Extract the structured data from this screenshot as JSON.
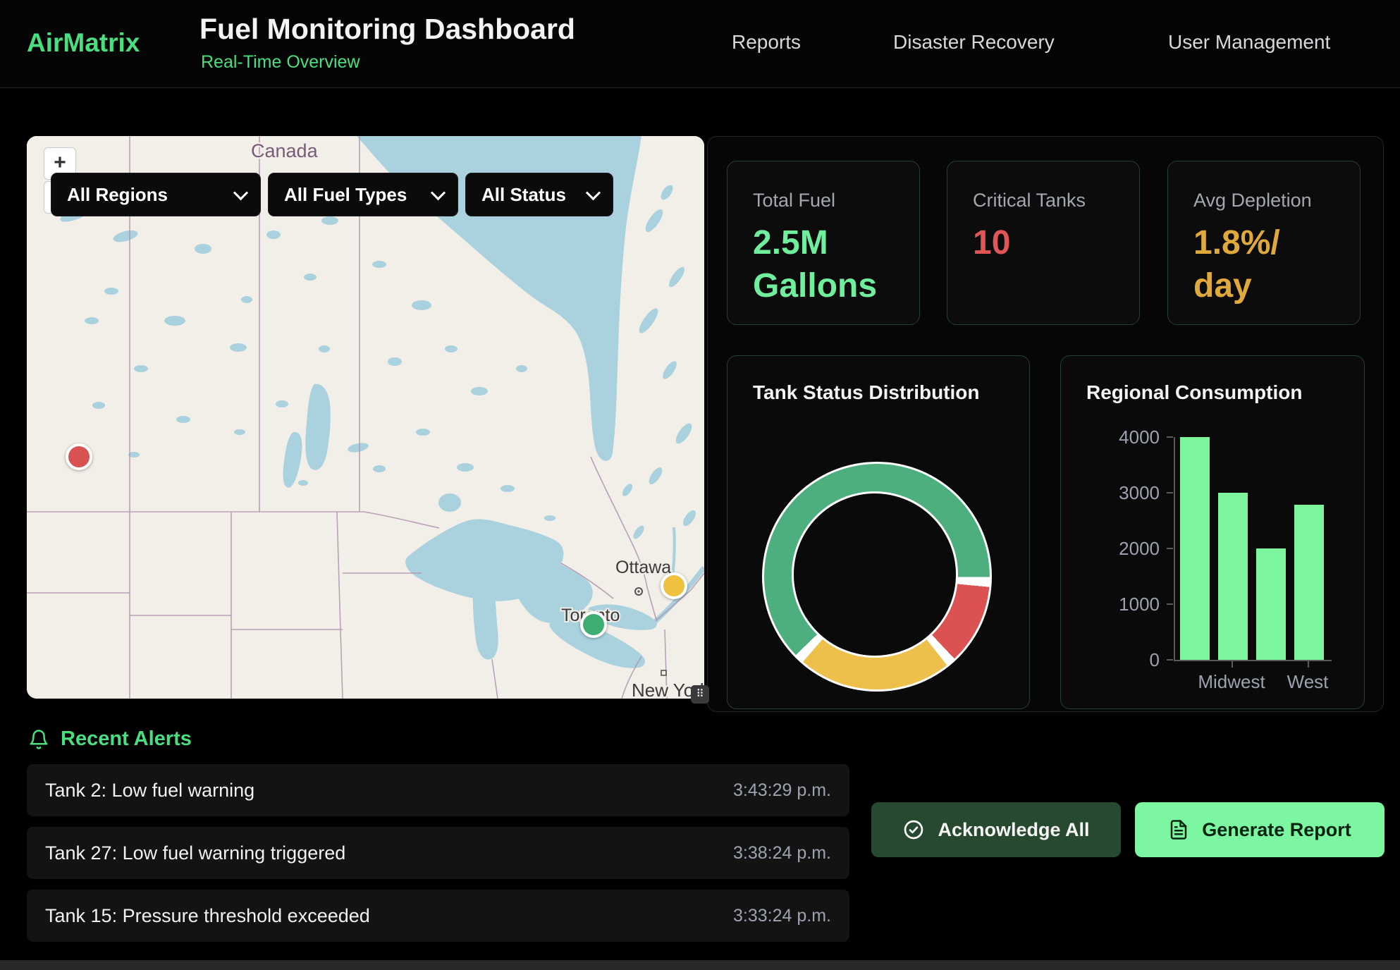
{
  "header": {
    "brand": "AirMatrix",
    "title": "Fuel Monitoring Dashboard",
    "subtitle": "Real-Time Overview",
    "nav": [
      {
        "label": "Reports"
      },
      {
        "label": "Disaster Recovery"
      },
      {
        "label": "User Management"
      }
    ]
  },
  "map": {
    "zoom_in_label": "+",
    "zoom_out_label": "−",
    "attribution_icon": "⠿",
    "filters": [
      {
        "label": "All Regions"
      },
      {
        "label": "All Fuel Types"
      },
      {
        "label": "All Status"
      }
    ],
    "country_label": "Canada",
    "city_labels": {
      "ottawa": "Ottawa",
      "toronto": "Toronto",
      "new_york": "New York"
    },
    "markers": [
      {
        "status": "critical",
        "color": "#d95252"
      },
      {
        "status": "warning",
        "color": "#eec13f"
      },
      {
        "status": "normal",
        "color": "#3eae72"
      }
    ]
  },
  "stats": [
    {
      "label": "Total Fuel",
      "line1": "2.5M",
      "line2": "Gallons",
      "color": "#6fee9d"
    },
    {
      "label": "Critical Tanks",
      "line1": "10",
      "line2": "",
      "color": "#e25555"
    },
    {
      "label": "Avg Depletion",
      "line1": "1.8%/",
      "line2": "day",
      "color": "#e0a93c"
    }
  ],
  "chart_data": [
    {
      "type": "donut",
      "title": "Tank Status Distribution",
      "rotation_deg": 226,
      "segments": [
        {
          "label": "normal",
          "color": "#4caf7d",
          "percent": 65
        },
        {
          "label": "critical",
          "color": "#dc5151",
          "percent": 12
        },
        {
          "label": "warning",
          "color": "#ecc04a",
          "percent": 23
        }
      ],
      "border_color": "#ffffff",
      "legend": false
    },
    {
      "type": "bar",
      "title": "Regional Consumption",
      "categories": [
        "",
        "Midwest",
        "",
        "West"
      ],
      "values": [
        4000,
        3000,
        2000,
        2780
      ],
      "category_labels_visible": [
        "Midwest",
        "West"
      ],
      "ylim": [
        0,
        4000
      ],
      "ytick_labels": [
        "4000",
        "3000",
        "2000",
        "1000",
        "0"
      ],
      "bar_color": "#7df59d",
      "grid": false,
      "legend": false
    }
  ],
  "alerts": {
    "title": "Recent Alerts",
    "items": [
      {
        "text": "Tank 2: Low fuel warning",
        "time": "3:43:29 p.m."
      },
      {
        "text": "Tank 27: Low fuel warning triggered",
        "time": "3:38:24 p.m."
      },
      {
        "text": "Tank 15: Pressure threshold exceeded",
        "time": "3:33:24 p.m."
      }
    ]
  },
  "actions": {
    "acknowledge_label": "Acknowledge All",
    "generate_label": "Generate Report"
  },
  "colors": {
    "accent_green": "#4ade80",
    "bar_green": "#7df59d",
    "critical_red": "#e25555",
    "warning_gold": "#e0a93c",
    "map_water": "#a9d1de",
    "map_land": "#f2efe8"
  }
}
